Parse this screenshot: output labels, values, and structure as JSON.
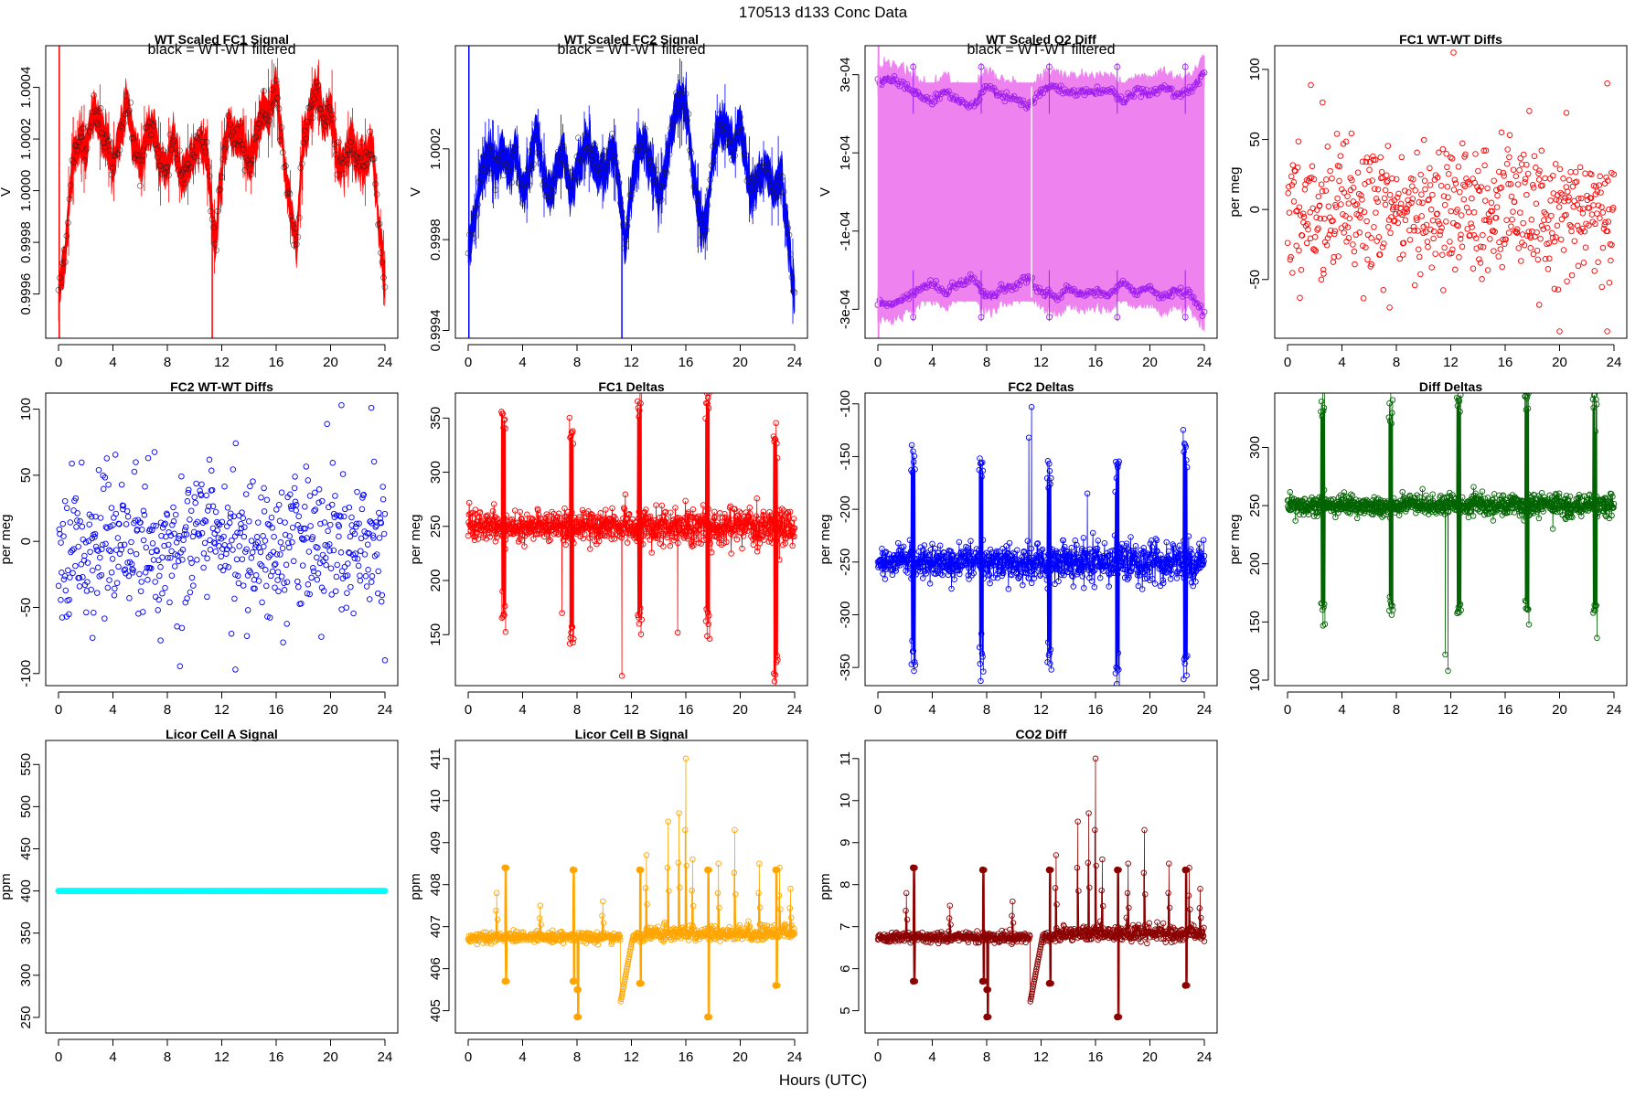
{
  "figure": {
    "title": "170513   d133   Conc Data",
    "xlabel": "Hours (UTC)"
  },
  "chart_data": [
    {
      "id": "fc1-signal",
      "type": "line",
      "title": "WT Scaled FC1 Signal",
      "annotation": "black = WT-WT filtered",
      "ylabel": "V",
      "color": "#ff0000",
      "xlim": [
        0,
        24
      ],
      "ylim": [
        0.99945,
        1.00054
      ],
      "xticks": [
        0,
        4,
        8,
        12,
        16,
        20,
        24
      ],
      "yticks": [
        0.9996,
        0.9998,
        1.0,
        1.0002,
        1.0004
      ],
      "yticklabels": [
        "0.9996",
        "0.9998",
        "1.0000",
        "1.0002",
        "1.0004"
      ],
      "mode": "band-with-points",
      "series": [
        {
          "x": [
            0,
            0.5,
            1,
            1.5,
            2,
            2.5,
            3,
            3.5,
            4,
            4.5,
            5,
            5.5,
            6,
            6.5,
            7,
            7.5,
            8,
            8.5,
            9,
            9.5,
            10,
            10.5,
            11,
            11.5,
            12,
            12.5,
            13,
            13.5,
            14,
            14.5,
            15,
            15.5,
            16,
            16.5,
            17,
            17.5,
            18,
            18.5,
            19,
            19.5,
            20,
            20.5,
            21,
            21.5,
            22,
            22.5,
            23,
            23.5,
            24
          ],
          "values": [
            0.9996,
            0.99975,
            1.0001,
            1.0002,
            1.00015,
            1.0003,
            1.00025,
            1.0002,
            1.0001,
            1.0002,
            1.00035,
            1.0002,
            1.0001,
            1.0002,
            1.00025,
            1.0001,
            1.0001,
            1.0002,
            1.00005,
            1.0001,
            1.00015,
            1.0002,
            1.0001,
            0.9998,
            1.0001,
            1.00025,
            1.0002,
            1.0002,
            1.0001,
            1.0002,
            1.0003,
            1.0003,
            1.0004,
            1.00015,
            0.99995,
            0.9998,
            1.0002,
            1.0003,
            1.0004,
            1.00025,
            1.00035,
            1.0001,
            1.0001,
            1.0002,
            1.0001,
            1.0001,
            1.0002,
            0.9999,
            0.99965
          ]
        }
      ]
    },
    {
      "id": "fc2-signal",
      "type": "line",
      "title": "WT Scaled FC2 Signal",
      "annotation": "black = WT-WT filtered",
      "ylabel": "V",
      "color": "#0000ff",
      "xlim": [
        0,
        24
      ],
      "ylim": [
        0.99939,
        1.00063
      ],
      "xticks": [
        0,
        4,
        8,
        12,
        16,
        20,
        24
      ],
      "yticks": [
        0.9994,
        0.9998,
        1.0002
      ],
      "yticklabels": [
        "0.9994",
        "0.9998",
        "1.0002"
      ],
      "mode": "band-with-points",
      "series": [
        {
          "x": [
            0,
            0.5,
            1,
            1.5,
            2,
            2.5,
            3,
            3.5,
            4,
            4.5,
            5,
            5.5,
            6,
            6.5,
            7,
            7.5,
            8,
            8.5,
            9,
            9.5,
            10,
            10.5,
            11,
            11.5,
            12,
            12.5,
            13,
            13.5,
            14,
            14.5,
            15,
            15.5,
            16,
            16.5,
            17,
            17.5,
            18,
            18.5,
            19,
            19.5,
            20,
            20.5,
            21,
            21.5,
            22,
            22.5,
            23,
            23.5,
            24
          ],
          "values": [
            0.99975,
            0.9999,
            1.0001,
            1.0002,
            1.0001,
            1.0002,
            1.0001,
            1.0002,
            1.0,
            1.0001,
            1.0003,
            1.0001,
            1.0,
            1.0001,
            1.0002,
            1.0,
            1.0001,
            1.0002,
            1.0002,
            1.0001,
            1.0001,
            1.0002,
            1.0001,
            0.9998,
            1.0,
            1.0002,
            1.0002,
            1.0001,
            1.0,
            1.0001,
            1.0003,
            1.0004,
            1.0004,
            1.0001,
            0.9999,
            0.99985,
            1.0002,
            1.0003,
            1.0003,
            1.0002,
            1.0003,
            1.0001,
            1.0,
            1.0001,
            1.0001,
            1.0,
            1.0001,
            0.9998,
            0.99955
          ]
        }
      ]
    },
    {
      "id": "o2-diff",
      "type": "line",
      "title": "WT Scaled O2 Diff",
      "annotation": "black = WT-WT filtered",
      "ylabel": "V",
      "color": "#a020f0",
      "band_color": "#ee82ee",
      "xlim": [
        0,
        24
      ],
      "ylim": [
        -0.00036,
        0.00036
      ],
      "xticks": [
        0,
        4,
        8,
        12,
        16,
        20,
        24
      ],
      "yticks": [
        -0.0003,
        -0.0001,
        0.0001,
        0.0003
      ],
      "yticklabels": [
        "-3e-04",
        "-1e-04",
        "1e-04",
        "3e-04"
      ],
      "mode": "mirrored-band",
      "series": [
        {
          "x": [
            0,
            1,
            2,
            3,
            4,
            5,
            6,
            7,
            8,
            9,
            10,
            11,
            12,
            13,
            14,
            15,
            16,
            17,
            18,
            19,
            20,
            21,
            22,
            23,
            24
          ],
          "values": [
            0.00028,
            0.00029,
            0.00027,
            0.00025,
            0.00023,
            0.00026,
            0.00023,
            0.00022,
            0.00027,
            0.00025,
            0.00024,
            0.00022,
            0.00026,
            0.00027,
            0.00025,
            0.00026,
            0.00025,
            0.00026,
            0.00023,
            0.00026,
            0.00025,
            0.00027,
            0.00025,
            0.00026,
            0.00031
          ]
        }
      ]
    },
    {
      "id": "fc1-wtwt",
      "type": "scatter",
      "title": "FC1 WT-WT Diffs",
      "ylabel": "per meg",
      "color": "#ff0000",
      "xlim": [
        0,
        24
      ],
      "ylim": [
        -88,
        113
      ],
      "xticks": [
        0,
        4,
        8,
        12,
        16,
        20,
        24
      ],
      "yticks": [
        -50,
        0,
        50,
        100
      ],
      "yticklabels": [
        "-50",
        "0",
        "50",
        "100"
      ],
      "mode": "scatter-noise",
      "noise": {
        "center": 0,
        "sd": 25,
        "n": 560,
        "seed": 11
      },
      "extremes": [
        [
          12.2,
          112
        ],
        [
          20.5,
          69
        ],
        [
          23.5,
          90
        ],
        [
          18.5,
          -68
        ],
        [
          20,
          -87
        ],
        [
          23.5,
          -87
        ],
        [
          7.5,
          -70
        ]
      ]
    },
    {
      "id": "fc2-wtwt",
      "type": "scatter",
      "title": "FC2 WT-WT Diffs",
      "ylabel": "per meg",
      "color": "#0000ff",
      "xlim": [
        0,
        24
      ],
      "ylim": [
        -105,
        108
      ],
      "xticks": [
        0,
        4,
        8,
        12,
        16,
        20,
        24
      ],
      "yticks": [
        -100,
        -50,
        0,
        50,
        100
      ],
      "yticklabels": [
        "-100",
        "-50",
        "0",
        "50",
        "100"
      ],
      "mode": "scatter-noise",
      "noise": {
        "center": 0,
        "sd": 26,
        "n": 560,
        "seed": 23
      },
      "extremes": [
        [
          20.8,
          103
        ],
        [
          23,
          101
        ],
        [
          13,
          -97
        ],
        [
          24,
          -90
        ],
        [
          2.5,
          -73
        ],
        [
          7.5,
          -75
        ]
      ]
    },
    {
      "id": "fc1-deltas",
      "type": "line",
      "title": "FC1 Deltas",
      "ylabel": "per meg",
      "color": "#ff0000",
      "xlim": [
        0,
        24
      ],
      "ylim": [
        108,
        368
      ],
      "xticks": [
        0,
        4,
        8,
        12,
        16,
        20,
        24
      ],
      "yticks": [
        150,
        200,
        250,
        300,
        350
      ],
      "yticklabels": [
        "150",
        "200",
        "250",
        "300",
        "350"
      ],
      "mode": "deltas",
      "baseline": 250,
      "noise_sd": 7,
      "spikes": [
        [
          2.6,
          344,
          166
        ],
        [
          7.6,
          337,
          143
        ],
        [
          12.6,
          362,
          168
        ],
        [
          17.6,
          358,
          162
        ],
        [
          22.6,
          326,
          118
        ]
      ],
      "outliers": [
        [
          11.3,
          112
        ],
        [
          15.4,
          152
        ],
        [
          6.9,
          170
        ]
      ]
    },
    {
      "id": "fc2-deltas",
      "type": "line",
      "title": "FC2 Deltas",
      "ylabel": "per meg",
      "color": "#0000ff",
      "xlim": [
        0,
        24
      ],
      "ylim": [
        -362,
        -95
      ],
      "xticks": [
        0,
        4,
        8,
        12,
        16,
        20,
        24
      ],
      "yticks": [
        -350,
        -300,
        -250,
        -200,
        -150,
        -100
      ],
      "yticklabels": [
        "-350",
        "-300",
        "-250",
        "-200",
        "-150",
        "-100"
      ],
      "mode": "deltas",
      "baseline": -250,
      "noise_sd": 8,
      "spikes": [
        [
          2.6,
          -150,
          -340
        ],
        [
          7.6,
          -160,
          -340
        ],
        [
          12.6,
          -160,
          -340
        ],
        [
          17.6,
          -170,
          -357
        ],
        [
          22.6,
          -145,
          -348
        ]
      ],
      "outliers": [
        [
          11.3,
          -103
        ],
        [
          11.1,
          -132
        ],
        [
          15.4,
          -185
        ]
      ]
    },
    {
      "id": "diff-deltas",
      "type": "line",
      "title": "Diff Deltas",
      "ylabel": "per meg",
      "color": "#006400",
      "xlim": [
        0,
        24
      ],
      "ylim": [
        100,
        342
      ],
      "xticks": [
        0,
        4,
        8,
        12,
        16,
        20,
        24
      ],
      "yticks": [
        100,
        150,
        200,
        250,
        300
      ],
      "yticklabels": [
        "100",
        "150",
        "200",
        "250",
        "300"
      ],
      "mode": "deltas",
      "baseline": 250,
      "noise_sd": 4,
      "spikes": [
        [
          2.6,
          338,
          165
        ],
        [
          7.6,
          336,
          162
        ],
        [
          12.6,
          338,
          164
        ],
        [
          17.6,
          337,
          160
        ],
        [
          22.6,
          338,
          158
        ]
      ],
      "outliers": [
        [
          11.8,
          108
        ],
        [
          11.6,
          122
        ],
        [
          19.5,
          230
        ]
      ]
    },
    {
      "id": "licor-a",
      "type": "line",
      "title": "Licor Cell A Signal",
      "ylabel": "ppm",
      "color": "#00ffff",
      "xlim": [
        0,
        24
      ],
      "ylim": [
        238,
        572
      ],
      "xticks": [
        0,
        4,
        8,
        12,
        16,
        20,
        24
      ],
      "yticks": [
        250,
        300,
        350,
        400,
        450,
        500,
        550
      ],
      "yticklabels": [
        "250",
        "300",
        "350",
        "400",
        "450",
        "500",
        "550"
      ],
      "mode": "flat",
      "series": [
        {
          "x": [
            0,
            24
          ],
          "values": [
            400,
            400
          ]
        }
      ]
    },
    {
      "id": "licor-b",
      "type": "line",
      "title": "Licor Cell B Signal",
      "ylabel": "ppm",
      "color": "#ffa500",
      "xlim": [
        0,
        24
      ],
      "ylim": [
        404.6,
        411.3
      ],
      "xticks": [
        0,
        4,
        8,
        12,
        16,
        20,
        24
      ],
      "yticks": [
        405,
        406,
        407,
        408,
        409,
        410,
        411
      ],
      "yticklabels": [
        "405",
        "406",
        "407",
        "408",
        "409",
        "410",
        "411"
      ],
      "mode": "co2",
      "baseline": 406.75,
      "noise_sd": 0.06,
      "spikes": [
        [
          2.7,
          408.4,
          405.7
        ],
        [
          7.7,
          408.35,
          405.7
        ],
        [
          8.0,
          405.5,
          404.85
        ],
        [
          12.6,
          408.35,
          405.65
        ],
        [
          17.6,
          408.35,
          404.85
        ],
        [
          22.6,
          408.35,
          405.6
        ]
      ],
      "peaks": [
        [
          2.1,
          407.8
        ],
        [
          5.3,
          407.5
        ],
        [
          9.9,
          407.6
        ],
        [
          13.1,
          408.7
        ],
        [
          14.7,
          409.5
        ],
        [
          15.5,
          409.7
        ],
        [
          16.0,
          411.0
        ],
        [
          16.5,
          408.6
        ],
        [
          18.4,
          408.5
        ],
        [
          19.6,
          409.3
        ],
        [
          21.4,
          408.5
        ],
        [
          22.9,
          408.4
        ],
        [
          23.7,
          407.9
        ]
      ],
      "dip": [
        11.2,
        12.1,
        405.2
      ]
    },
    {
      "id": "co2-diff",
      "type": "line",
      "title": "CO2 Diff",
      "ylabel": "ppm",
      "color": "#8b0000",
      "xlim": [
        0,
        24
      ],
      "ylim": [
        4.6,
        11.3
      ],
      "xticks": [
        0,
        4,
        8,
        12,
        16,
        20,
        24
      ],
      "yticks": [
        5,
        6,
        7,
        8,
        9,
        10,
        11
      ],
      "yticklabels": [
        "5",
        "6",
        "7",
        "8",
        "9",
        "10",
        "11"
      ],
      "mode": "co2",
      "baseline": 6.75,
      "noise_sd": 0.06,
      "spikes": [
        [
          2.6,
          8.4,
          5.7
        ],
        [
          7.7,
          8.35,
          5.7
        ],
        [
          8.0,
          5.5,
          4.85
        ],
        [
          12.6,
          8.35,
          5.65
        ],
        [
          17.6,
          8.35,
          4.85
        ],
        [
          22.6,
          8.35,
          5.6
        ]
      ],
      "peaks": [
        [
          2.1,
          7.8
        ],
        [
          5.3,
          7.5
        ],
        [
          9.9,
          7.6
        ],
        [
          13.1,
          8.7
        ],
        [
          14.7,
          9.5
        ],
        [
          15.5,
          9.7
        ],
        [
          16.0,
          11.0
        ],
        [
          16.5,
          8.6
        ],
        [
          18.4,
          8.5
        ],
        [
          19.6,
          9.3
        ],
        [
          21.4,
          8.5
        ],
        [
          22.9,
          8.4
        ],
        [
          23.7,
          7.9
        ]
      ],
      "dip": [
        11.2,
        12.1,
        5.2
      ]
    }
  ]
}
